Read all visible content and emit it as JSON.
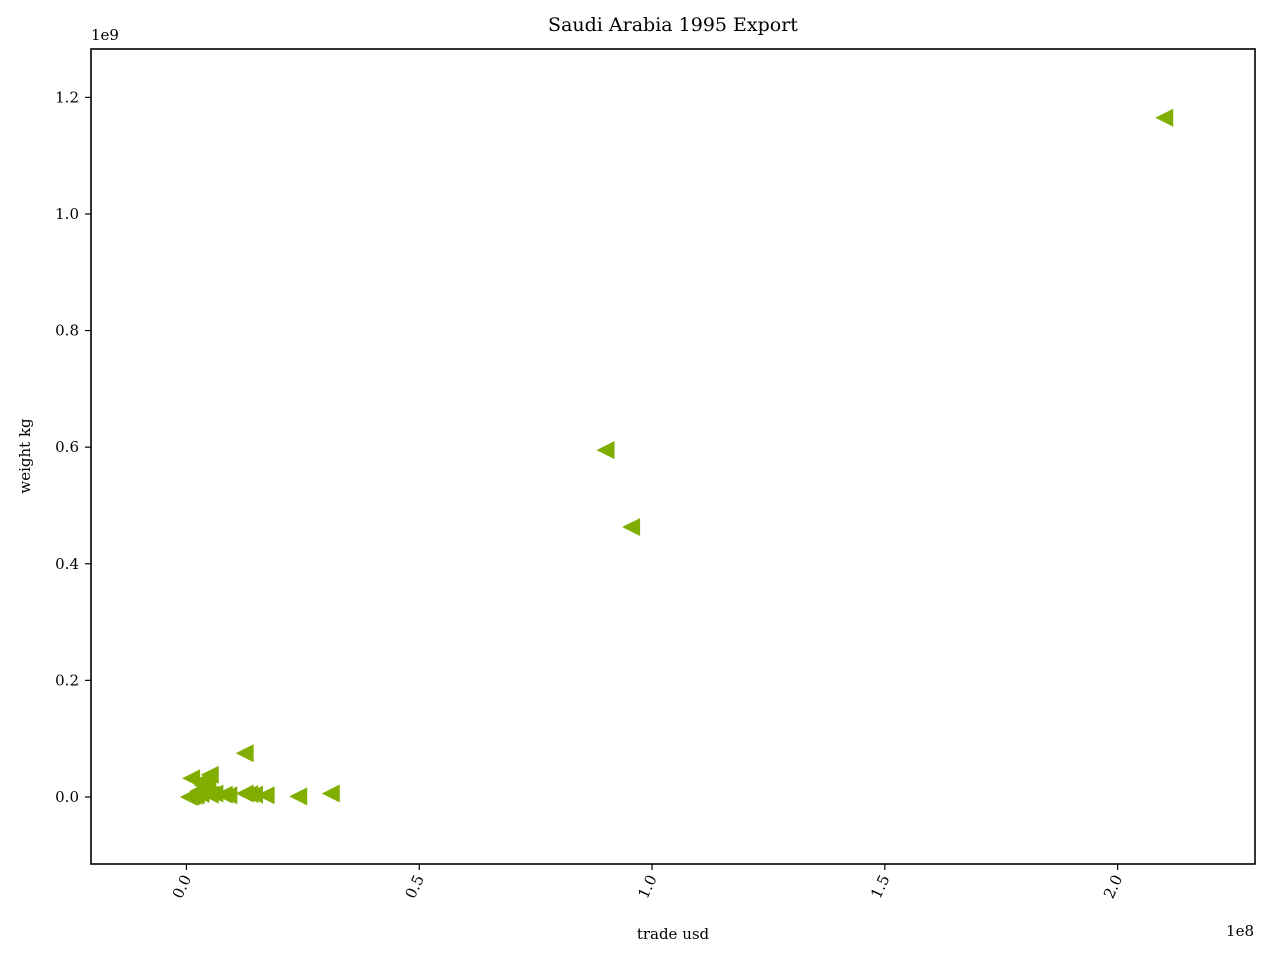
{
  "chart_data": {
    "type": "scatter",
    "title": "Saudi Arabia 1995 Export",
    "xlabel": "trade usd",
    "ylabel": "weight kg",
    "x_offset_label": "1e8",
    "y_offset_label": "1e9",
    "x_scale": 100000000,
    "y_scale": 1000000000,
    "xlim": [
      -0.205,
      2.295
    ],
    "ylim": [
      -0.115,
      1.283
    ],
    "x_ticks": [
      0.0,
      0.5,
      1.0,
      1.5,
      2.0
    ],
    "x_tick_labels": [
      "0.0",
      "0.5",
      "1.0",
      "1.5",
      "2.0"
    ],
    "y_ticks": [
      0.0,
      0.2,
      0.4,
      0.6,
      0.8,
      1.0,
      1.2
    ],
    "y_tick_labels": [
      "0.0",
      "0.2",
      "0.4",
      "0.6",
      "0.8",
      "1.0",
      "1.2"
    ],
    "grid": false,
    "marker": "triangle-left",
    "series": [
      {
        "color": "#7fad00",
        "points": [
          [
            2.1,
            1.165
          ],
          [
            0.9,
            0.595
          ],
          [
            0.955,
            0.463
          ],
          [
            0.125,
            0.075
          ],
          [
            0.01,
            0.032
          ],
          [
            0.05,
            0.038
          ],
          [
            0.04,
            0.03
          ],
          [
            0.035,
            0.02
          ],
          [
            0.045,
            0.015
          ],
          [
            0.025,
            0.01
          ],
          [
            0.03,
            0.005
          ],
          [
            0.02,
            0.003
          ],
          [
            0.01,
            0.001
          ],
          [
            0.005,
            0.0
          ],
          [
            0.015,
            0.002
          ],
          [
            0.05,
            0.004
          ],
          [
            0.06,
            0.006
          ],
          [
            0.08,
            0.004
          ],
          [
            0.09,
            0.003
          ],
          [
            0.125,
            0.006
          ],
          [
            0.135,
            0.005
          ],
          [
            0.145,
            0.004
          ],
          [
            0.17,
            0.003
          ],
          [
            0.24,
            0.001
          ],
          [
            0.31,
            0.006
          ]
        ]
      }
    ]
  }
}
